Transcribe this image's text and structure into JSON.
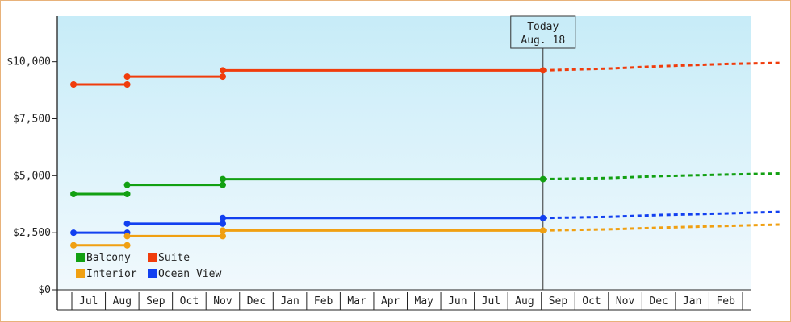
{
  "chart_data": {
    "type": "line",
    "title": "",
    "xlabel": "",
    "ylabel": "",
    "ylim": [
      0,
      12000
    ],
    "y_ticks": [
      "$0",
      "$2,500",
      "$5,000",
      "$7,500",
      "$10,000"
    ],
    "y_tick_values": [
      0,
      2500,
      5000,
      7500,
      10000
    ],
    "months": [
      "Jul",
      "Aug",
      "Sep",
      "Oct",
      "Nov",
      "Dec",
      "Jan",
      "Feb",
      "Mar",
      "Apr",
      "May",
      "Jun",
      "Jul",
      "Aug",
      "Sep",
      "Oct",
      "Nov",
      "Dec",
      "Jan",
      "Feb"
    ],
    "today": {
      "line1": "Today",
      "line2": "Aug. 18",
      "month_index": 13.55
    },
    "series": [
      {
        "name": "Suite",
        "color": "#f03c0c",
        "steps": [
          {
            "from": -0.45,
            "to": 1.15,
            "value": 9000
          },
          {
            "from": 1.15,
            "to": 4.0,
            "value": 9350
          },
          {
            "from": 4.0,
            "to": 13.55,
            "value": 9620
          }
        ],
        "forecast": [
          [
            13.55,
            9620
          ],
          [
            15.5,
            9700
          ],
          [
            17.0,
            9800
          ],
          [
            19.0,
            9900
          ],
          [
            20.6,
            9950
          ]
        ]
      },
      {
        "name": "Balcony",
        "color": "#12a012",
        "steps": [
          {
            "from": -0.45,
            "to": 1.15,
            "value": 4200
          },
          {
            "from": 1.15,
            "to": 4.0,
            "value": 4600
          },
          {
            "from": 4.0,
            "to": 13.55,
            "value": 4850
          }
        ],
        "forecast": [
          [
            13.55,
            4850
          ],
          [
            15.5,
            4900
          ],
          [
            17.0,
            4980
          ],
          [
            19.0,
            5050
          ],
          [
            20.6,
            5100
          ]
        ]
      },
      {
        "name": "Ocean View",
        "color": "#1240f0",
        "steps": [
          {
            "from": -0.45,
            "to": 1.15,
            "value": 2500
          },
          {
            "from": 1.15,
            "to": 4.0,
            "value": 2900
          },
          {
            "from": 4.0,
            "to": 13.55,
            "value": 3150
          }
        ],
        "forecast": [
          [
            13.55,
            3150
          ],
          [
            15.5,
            3200
          ],
          [
            17.0,
            3280
          ],
          [
            19.0,
            3350
          ],
          [
            20.6,
            3420
          ]
        ]
      },
      {
        "name": "Interior",
        "color": "#f0a012",
        "steps": [
          {
            "from": -0.45,
            "to": 1.15,
            "value": 1950
          },
          {
            "from": 1.15,
            "to": 4.0,
            "value": 2350
          },
          {
            "from": 4.0,
            "to": 13.55,
            "value": 2600
          }
        ],
        "forecast": [
          [
            13.55,
            2600
          ],
          [
            15.5,
            2650
          ],
          [
            17.0,
            2720
          ],
          [
            19.0,
            2800
          ],
          [
            20.6,
            2860
          ]
        ]
      }
    ],
    "legend": [
      {
        "name": "Balcony",
        "color": "#12a012"
      },
      {
        "name": "Suite",
        "color": "#f03c0c"
      },
      {
        "name": "Interior",
        "color": "#f0a012"
      },
      {
        "name": "Ocean View",
        "color": "#1240f0"
      }
    ],
    "legend_position": "bottom-left",
    "grid": false,
    "background_gradient": [
      "#c7ecf8",
      "#f1f9fd"
    ]
  }
}
